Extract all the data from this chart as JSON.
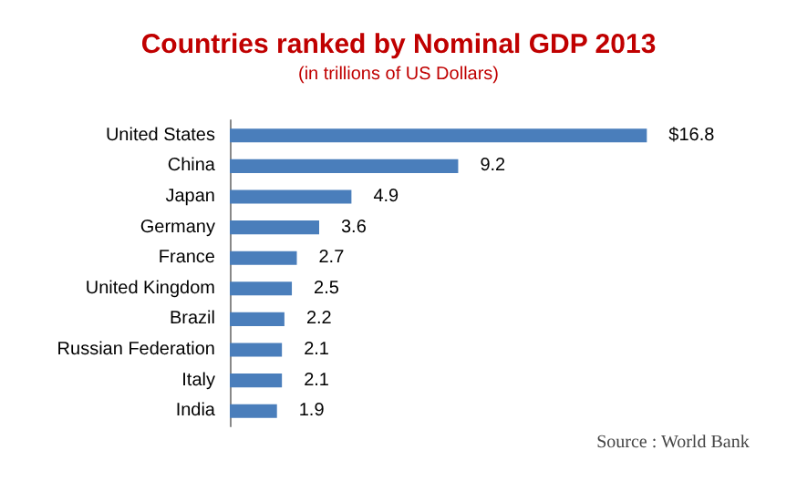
{
  "chart_data": {
    "type": "bar",
    "orientation": "horizontal",
    "title": "Countries ranked by Nominal GDP 2013",
    "subtitle": "(in trillions of US Dollars)",
    "categories": [
      "United States",
      "China",
      "Japan",
      "Germany",
      "France",
      "United Kingdom",
      "Brazil",
      "Russian Federation",
      "Italy",
      "India"
    ],
    "values": [
      16.8,
      9.2,
      4.9,
      3.6,
      2.7,
      2.5,
      2.2,
      2.1,
      2.1,
      1.9
    ],
    "value_labels": [
      "$16.8",
      "9.2",
      "4.9",
      "3.6",
      "2.7",
      "2.5",
      "2.2",
      "2.1",
      "2.1",
      "1.9"
    ],
    "color": "#4a7ebb",
    "annotations": [
      "Source : World Bank"
    ]
  }
}
